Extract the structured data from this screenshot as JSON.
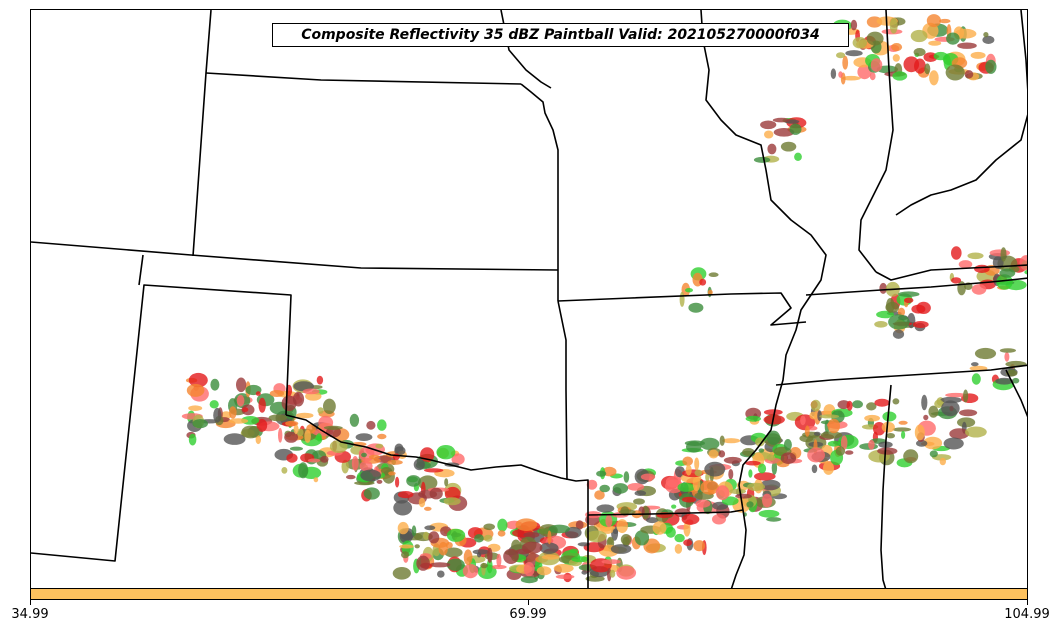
{
  "title": "Composite Reflectivity 35 dBZ Paintball Valid: 202105270000f034",
  "colorbar": {
    "color": "#fdc15e",
    "ticks": [
      "34.99",
      "69.99",
      "104.99"
    ]
  },
  "member_colors": [
    "#e31a1c",
    "#ff6a6a",
    "#f58631",
    "#fdae4a",
    "#2fd02f",
    "#3c8d3c",
    "#b2b24a",
    "#9b3a3a",
    "#555555",
    "#6e7a32"
  ]
}
